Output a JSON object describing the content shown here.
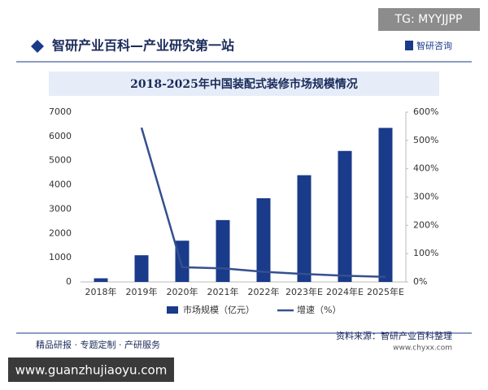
{
  "header": {
    "badge": "TG: MYYJJPP",
    "title": "智研产业百科—产业研究第一站",
    "logo": "智研咨询"
  },
  "footer": {
    "services": "精品研报 · 专题定制 · 产研服务",
    "source": "资料来源：智研产业百科整理",
    "url": "www.chyxx.com",
    "watermark": "www.guanzhujiaoyu.com"
  },
  "chart_data": {
    "type": "bar",
    "title": "2018-2025年中国装配式装修市场规模情况",
    "categories": [
      "2018年",
      "2019年",
      "2020年",
      "2021年",
      "2022年",
      "2023年E",
      "2024年E",
      "2025年E"
    ],
    "series": [
      {
        "name": "市场规模（亿元）",
        "type": "bar",
        "color": "#1a3a8a",
        "values": [
          150,
          1100,
          1700,
          2550,
          3450,
          4400,
          5400,
          6350
        ]
      },
      {
        "name": "增速（%）",
        "type": "line",
        "axis": "y2",
        "color": "#34508f",
        "values": [
          null,
          545,
          52,
          48,
          36,
          28,
          22,
          18
        ]
      }
    ],
    "ylim": [
      0,
      7000
    ],
    "yticks": [
      0,
      1000,
      2000,
      3000,
      4000,
      5000,
      6000,
      7000
    ],
    "y2lim": [
      0,
      600
    ],
    "y2ticks": [
      {
        "value": 0,
        "label": "0%"
      },
      {
        "value": 100,
        "label": "100%"
      },
      {
        "value": 200,
        "label": "200%"
      },
      {
        "value": 300,
        "label": "300%"
      },
      {
        "value": 400,
        "label": "400%"
      },
      {
        "value": 500,
        "label": "500%"
      },
      {
        "value": 600,
        "label": "600%"
      }
    ],
    "grid": false
  }
}
